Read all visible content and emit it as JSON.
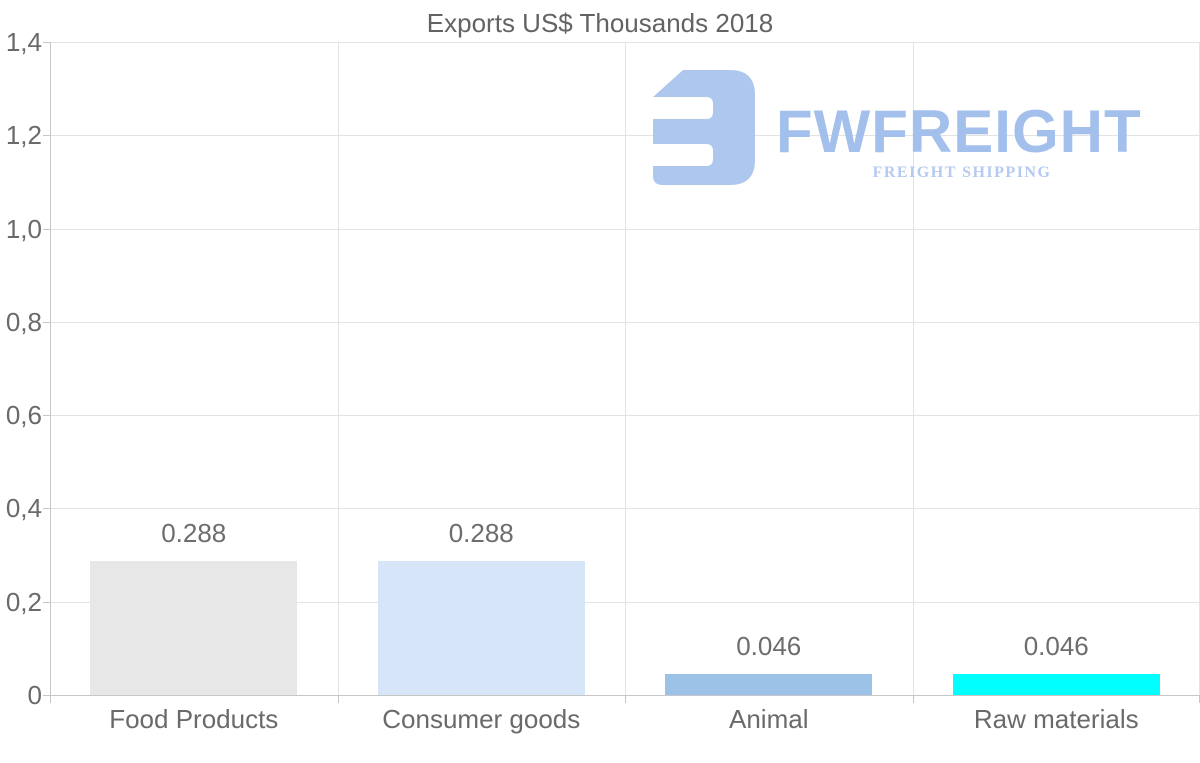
{
  "watermark": {
    "brand": "FWFREIGHT",
    "tagline": "FREIGHT SHIPPING",
    "icon": "fwfreight-logo-icon",
    "color_icon": "#aec7ee",
    "color_brand": "#a3c0ed",
    "color_tagline": "#b5caf1"
  },
  "chart_data": {
    "type": "bar",
    "title": "Exports US$ Thousands 2018",
    "categories": [
      "Food Products",
      "Consumer goods",
      "Animal",
      "Raw materials"
    ],
    "values": [
      0.288,
      0.288,
      0.046,
      0.046
    ],
    "value_labels": [
      "0.288",
      "0.288",
      "0.046",
      "0.046"
    ],
    "bar_colors": [
      "#e7e7e7",
      "#d6e6f8",
      "#9cc2e8",
      "#00ffff"
    ],
    "ylim": [
      0,
      1.4
    ],
    "y_ticks": [
      0,
      0.2,
      0.4,
      0.6,
      0.8,
      1.0,
      1.2,
      1.4
    ],
    "y_tick_labels": [
      "0",
      "0,2",
      "0,4",
      "0,6",
      "0,8",
      "1,0",
      "1,2",
      "1,4"
    ],
    "xlabel": "",
    "ylabel": "",
    "grid": true,
    "legend": false,
    "text_color": "#6a6a6a",
    "gridline_color": "#e3e3e3",
    "axis_color": "#c7c7c7"
  }
}
